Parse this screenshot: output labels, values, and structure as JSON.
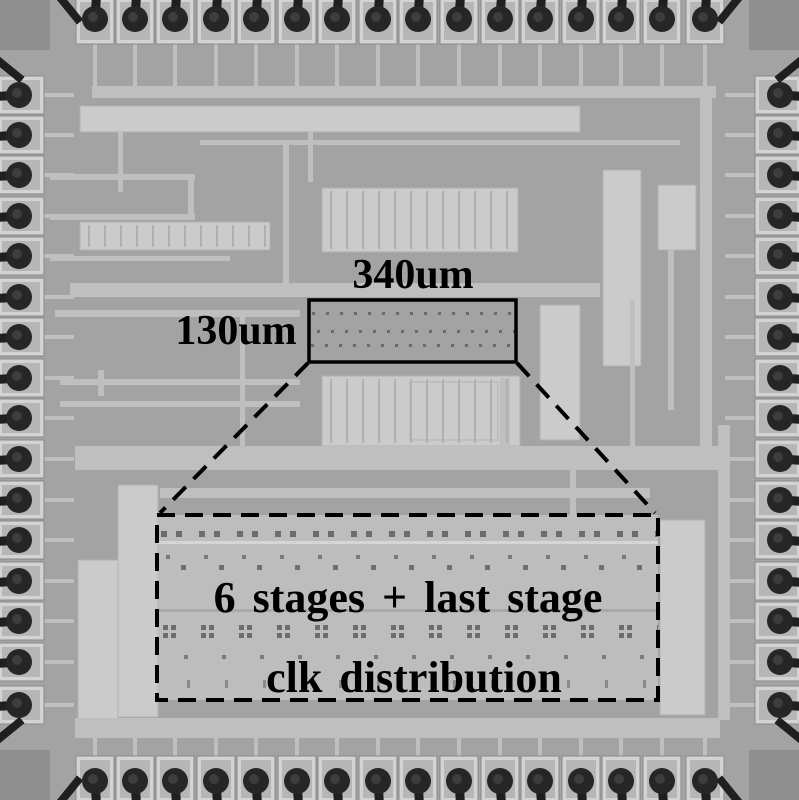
{
  "annotations": {
    "width_label": "340um",
    "height_label": "130um",
    "inset_line_1": "6 stages + last stage",
    "inset_line_2": "clk distribution"
  },
  "colors": {
    "annotation": "#000000",
    "die": "#a3a3a3",
    "corner": "#8f8f8f",
    "trace": "#bfbfbf",
    "block": "#cbcbcb",
    "block_edge": "#b0b0b0",
    "pad": "#d3d3d3",
    "pad_inner": "#b6b6b6",
    "bond_ball": "#262626",
    "bond_wire": "#1f1f1f",
    "inset_fill": "#bdbdbd",
    "cell_mark": "#6c6c6c"
  }
}
